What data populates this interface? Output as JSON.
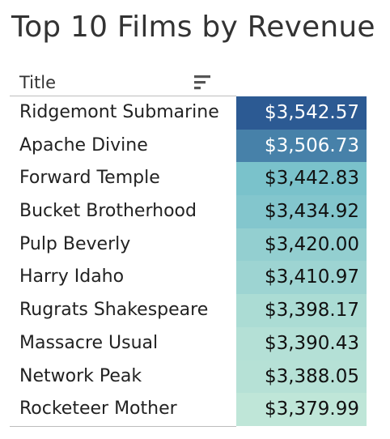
{
  "chart_data": {
    "type": "table",
    "title": "Top 10 Films by Revenue",
    "column_header": "Title",
    "rows": [
      {
        "title": "Ridgemont Submarine",
        "revenue": 3542.57,
        "display": "$3,542.57"
      },
      {
        "title": "Apache Divine",
        "revenue": 3506.73,
        "display": "$3,506.73"
      },
      {
        "title": "Forward Temple",
        "revenue": 3442.83,
        "display": "$3,442.83"
      },
      {
        "title": "Bucket Brotherhood",
        "revenue": 3434.92,
        "display": "$3,434.92"
      },
      {
        "title": "Pulp Beverly",
        "revenue": 3420.0,
        "display": "$3,420.00"
      },
      {
        "title": "Harry Idaho",
        "revenue": 3410.97,
        "display": "$3,410.97"
      },
      {
        "title": "Rugrats Shakespeare",
        "revenue": 3398.17,
        "display": "$3,398.17"
      },
      {
        "title": "Massacre Usual",
        "revenue": 3390.43,
        "display": "$3,390.43"
      },
      {
        "title": "Network Peak",
        "revenue": 3388.05,
        "display": "$3,388.05"
      },
      {
        "title": "Rocketeer Mother",
        "revenue": 3379.99,
        "display": "$3,379.99"
      }
    ],
    "color_scale": {
      "low": "#bfe6d8",
      "mid": "#6fbcc9",
      "high": "#2c5a93"
    },
    "sort_icon": "sort-descending-icon"
  }
}
